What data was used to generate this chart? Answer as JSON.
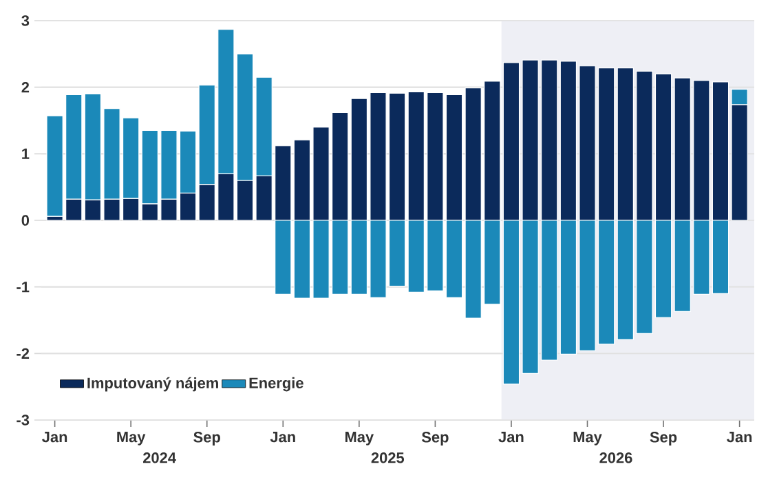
{
  "chart_data": {
    "type": "bar",
    "stacked": true,
    "x": [
      "2024-01",
      "2024-02",
      "2024-03",
      "2024-04",
      "2024-05",
      "2024-06",
      "2024-07",
      "2024-08",
      "2024-09",
      "2024-10",
      "2024-11",
      "2024-12",
      "2025-01",
      "2025-02",
      "2025-03",
      "2025-04",
      "2025-05",
      "2025-06",
      "2025-07",
      "2025-08",
      "2025-09",
      "2025-10",
      "2025-11",
      "2025-12",
      "2026-01",
      "2026-02",
      "2026-03",
      "2026-04",
      "2026-05",
      "2026-06",
      "2026-07",
      "2026-08",
      "2026-09",
      "2026-10",
      "2026-11",
      "2026-12",
      "2027-01"
    ],
    "series": [
      {
        "name": "Imputovaný nájem",
        "color": "#0b2a5b",
        "values": [
          0.06,
          0.32,
          0.31,
          0.32,
          0.33,
          0.25,
          0.32,
          0.41,
          0.54,
          0.7,
          0.6,
          0.67,
          1.12,
          1.21,
          1.4,
          1.62,
          1.83,
          1.92,
          1.91,
          1.93,
          1.92,
          1.89,
          1.99,
          2.09,
          2.37,
          2.41,
          2.41,
          2.39,
          2.32,
          2.29,
          2.29,
          2.24,
          2.2,
          2.14,
          2.1,
          2.08,
          1.74
        ]
      },
      {
        "name": "Energie",
        "color": "#1b89b9",
        "values": [
          1.51,
          1.57,
          1.59,
          1.36,
          1.21,
          1.1,
          1.03,
          0.93,
          1.49,
          2.17,
          1.9,
          1.48,
          -1.11,
          -1.17,
          -1.17,
          -1.11,
          -1.11,
          -1.16,
          -0.99,
          -1.08,
          -1.06,
          -1.16,
          -1.47,
          -1.26,
          -2.46,
          -2.3,
          -2.1,
          -2.01,
          -1.96,
          -1.86,
          -1.79,
          -1.7,
          -1.46,
          -1.37,
          -1.11,
          -1.1,
          0.23
        ]
      }
    ],
    "xticks": [
      {
        "value": "2024-01",
        "label": "Jan"
      },
      {
        "value": "2024-05",
        "label": "May"
      },
      {
        "value": "2024-09",
        "label": "Sep"
      },
      {
        "value": "2025-01",
        "label": "Jan"
      },
      {
        "value": "2025-05",
        "label": "May"
      },
      {
        "value": "2025-09",
        "label": "Sep"
      },
      {
        "value": "2026-01",
        "label": "Jan"
      },
      {
        "value": "2026-05",
        "label": "May"
      },
      {
        "value": "2026-09",
        "label": "Sep"
      },
      {
        "value": "2027-01",
        "label": "Jan"
      }
    ],
    "xlim": [
      "2023-12-10",
      "2027-01-25"
    ],
    "ylim": [
      -3,
      3
    ],
    "yticks": [
      -3,
      -2,
      -1,
      0,
      1,
      2,
      3
    ],
    "grid": "y",
    "legend": "bottom left",
    "bands": [
      {
        "axis": "x",
        "from": "2025-12-16",
        "to": "2027-01-25",
        "color": "#eeeff5"
      }
    ],
    "annotations": [
      "2024",
      "2025",
      "2026"
    ]
  }
}
